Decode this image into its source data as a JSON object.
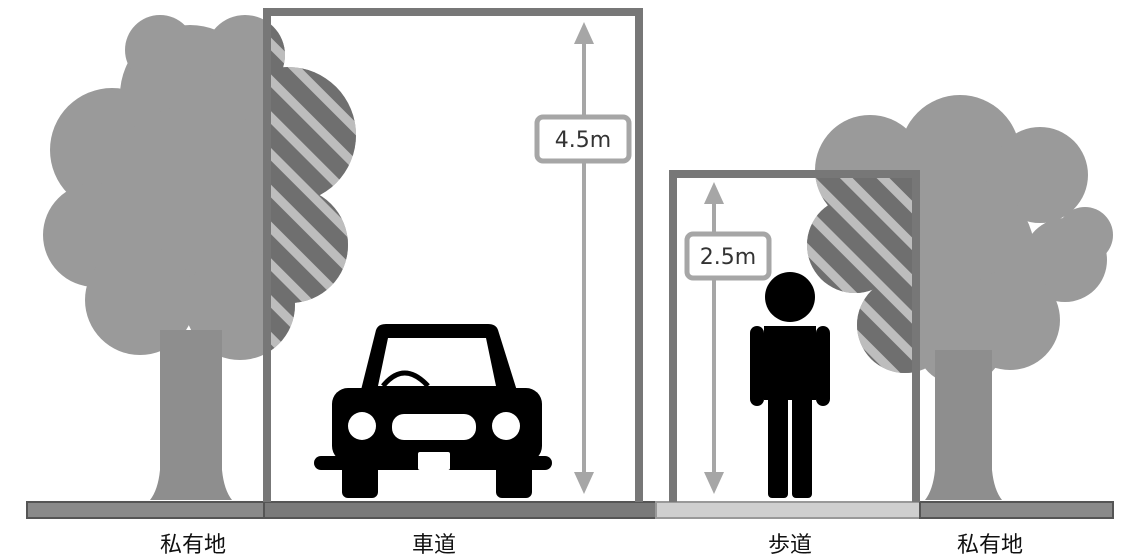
{
  "labels": {
    "private_land_left": "私有地",
    "roadway": "車道",
    "sidewalk": "歩道",
    "private_land_right": "私有地"
  },
  "dimensions": {
    "roadway_clearance": "4.5m",
    "sidewalk_clearance": "2.5m"
  },
  "colors": {
    "tree": "#9a9a9a",
    "tree_trunk": "#8e8e8e",
    "frame": "#777777",
    "arrow": "#a6a6a6",
    "hatch_bg": "#6f6f6f",
    "hatch_line": "#bdbdbd",
    "figure": "#000000",
    "ground_private": "#8a8a8a",
    "ground_road": "#7a7a7a",
    "ground_sidewalk": "#cfcfcf"
  },
  "icons": [
    "tree-icon",
    "car-icon",
    "person-icon"
  ]
}
